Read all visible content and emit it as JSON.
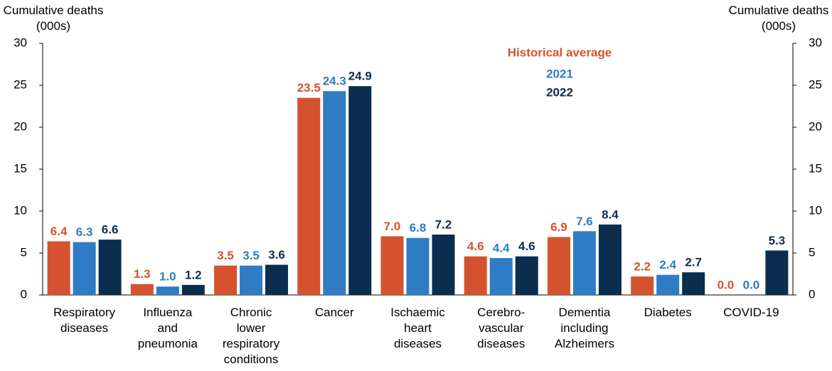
{
  "chart_data": {
    "type": "bar",
    "y_label": "Cumulative deaths\n(000s)",
    "y2_label": "Cumulative deaths\n(000s)",
    "categories": [
      "Respiratory\ndiseases",
      "Influenza\nand\npneumonia",
      "Chronic\nlower\nrespiratory\nconditions",
      "Cancer",
      "Ischaemic\nheart\ndiseases",
      "Cerebro-\nvascular\ndiseases",
      "Dementia\nincluding\nAlzheimers",
      "Diabetes",
      "COVID-19"
    ],
    "series": [
      {
        "name": "Historical average",
        "color": "#d4532e",
        "values": [
          6.4,
          1.3,
          3.5,
          23.5,
          7.0,
          4.6,
          6.9,
          2.2,
          0.0
        ],
        "value_labels": [
          "6.4",
          "1.3",
          "3.5",
          "23.5",
          "7.0",
          "4.6",
          "6.9",
          "2.2",
          "0.0"
        ]
      },
      {
        "name": "2021",
        "color": "#2e7cc4",
        "values": [
          6.3,
          1.0,
          3.5,
          24.3,
          6.8,
          4.4,
          7.6,
          2.4,
          0.0
        ],
        "value_labels": [
          "6.3",
          "1.0",
          "3.5",
          "24.3",
          "6.8",
          "4.4",
          "7.6",
          "2.4",
          "0.0"
        ]
      },
      {
        "name": "2022",
        "color": "#0b2e4f",
        "values": [
          6.6,
          1.2,
          3.6,
          24.9,
          7.2,
          4.6,
          8.4,
          2.7,
          5.3
        ],
        "value_labels": [
          "6.6",
          "1.2",
          "3.6",
          "24.9",
          "7.2",
          "4.6",
          "8.4",
          "2.7",
          "5.3"
        ]
      }
    ],
    "ylim": [
      0,
      30
    ],
    "yticks": [
      0,
      5,
      10,
      15,
      20,
      25,
      30
    ],
    "y2lim": [
      0,
      30
    ],
    "y2ticks": [
      0,
      5,
      10,
      15,
      20,
      25,
      30
    ],
    "grid": false
  }
}
